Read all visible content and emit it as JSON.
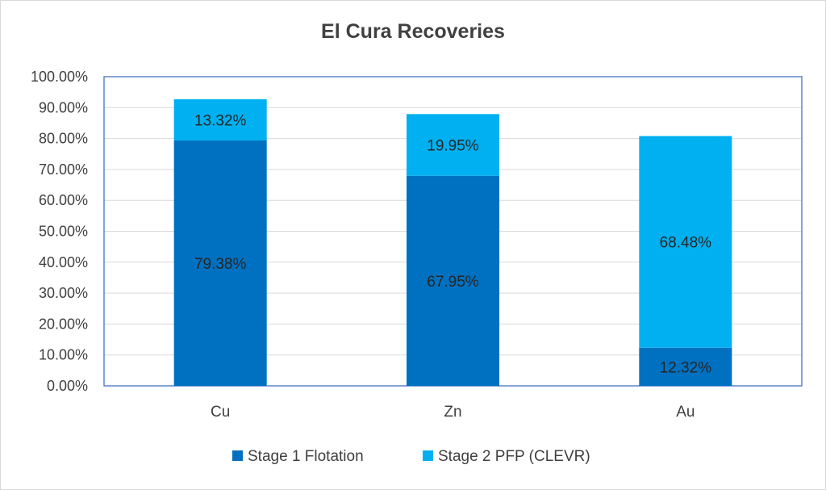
{
  "chart_data": {
    "type": "bar",
    "stacked": true,
    "title": "El Cura Recoveries",
    "categories": [
      "Cu",
      "Zn",
      "Au"
    ],
    "series": [
      {
        "name": "Stage 1 Flotation",
        "values": [
          79.38,
          67.95,
          12.32
        ],
        "labels": [
          "79.38%",
          "67.95%",
          "12.32%"
        ],
        "color": "#0070C0"
      },
      {
        "name": "Stage 2 PFP (CLEVR)",
        "values": [
          13.32,
          19.95,
          68.48
        ],
        "labels": [
          "13.32%",
          "19.95%",
          "68.48%"
        ],
        "color": "#00B0F0"
      }
    ],
    "yticks": [
      "0.00%",
      "10.00%",
      "20.00%",
      "30.00%",
      "40.00%",
      "50.00%",
      "60.00%",
      "70.00%",
      "80.00%",
      "90.00%",
      "100.00%"
    ],
    "ylim": [
      0,
      100
    ],
    "grid": true,
    "legend": "bottom",
    "plot_border_color": "#4472C4",
    "grid_color": "#d9d9d9"
  }
}
